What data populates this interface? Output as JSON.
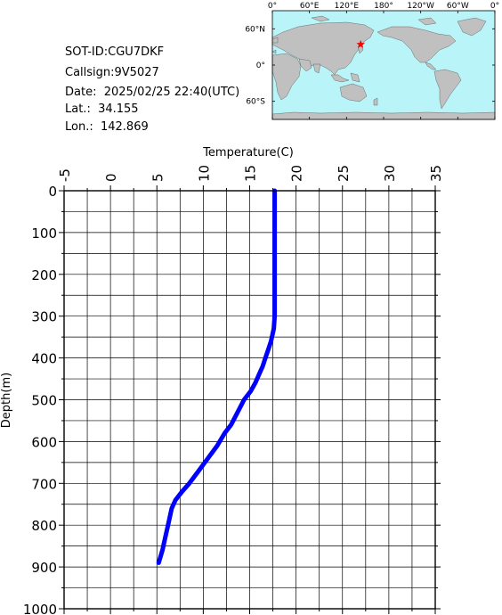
{
  "info": {
    "sot_id": "SOT-ID:CGU7DKF",
    "callsign": "Callsign:9V5027",
    "date": "Date:  2025/02/25 22:40(UTC)",
    "lat": "Lat.:  34.155",
    "lon": "Lon.:  142.869"
  },
  "map": {
    "lon_labels": [
      "0°",
      "60°E",
      "120°E",
      "180°",
      "120°W",
      "60°W",
      "0°"
    ],
    "lat_labels": [
      "60°N",
      "0°",
      "60°S"
    ],
    "station": {
      "lat": 34.155,
      "lon": 142.869
    },
    "colors": {
      "ocean": "#b8f4f8",
      "land": "#c0c0c0",
      "marker": "#ff0000"
    }
  },
  "chart_data": {
    "type": "line",
    "title": "",
    "xlabel": "Temperature(C)",
    "ylabel": "Depth(m)",
    "xlim": [
      -5,
      35
    ],
    "ylim": [
      0,
      1000
    ],
    "y_inverted": true,
    "x_axis_position": "top",
    "x_ticks": [
      "-5",
      "0",
      "5",
      "10",
      "15",
      "20",
      "25",
      "30",
      "35"
    ],
    "y_ticks": [
      "0",
      "100",
      "200",
      "300",
      "400",
      "500",
      "600",
      "700",
      "800",
      "900",
      "1000"
    ],
    "grid": true,
    "series": [
      {
        "color": "#0000ff",
        "points": [
          [
            17.7,
            0
          ],
          [
            17.7,
            100
          ],
          [
            17.7,
            200
          ],
          [
            17.7,
            300
          ],
          [
            17.6,
            330
          ],
          [
            17.3,
            360
          ],
          [
            17.0,
            380
          ],
          [
            16.7,
            400
          ],
          [
            16.4,
            420
          ],
          [
            16.0,
            440
          ],
          [
            15.6,
            460
          ],
          [
            15.1,
            480
          ],
          [
            14.4,
            500
          ],
          [
            13.7,
            530
          ],
          [
            13.0,
            560
          ],
          [
            12.3,
            580
          ],
          [
            11.5,
            610
          ],
          [
            10.5,
            640
          ],
          [
            9.5,
            670
          ],
          [
            8.5,
            700
          ],
          [
            7.7,
            720
          ],
          [
            7.0,
            740
          ],
          [
            6.6,
            760
          ],
          [
            6.2,
            800
          ],
          [
            5.9,
            830
          ],
          [
            5.6,
            860
          ],
          [
            5.2,
            890
          ]
        ]
      }
    ]
  }
}
